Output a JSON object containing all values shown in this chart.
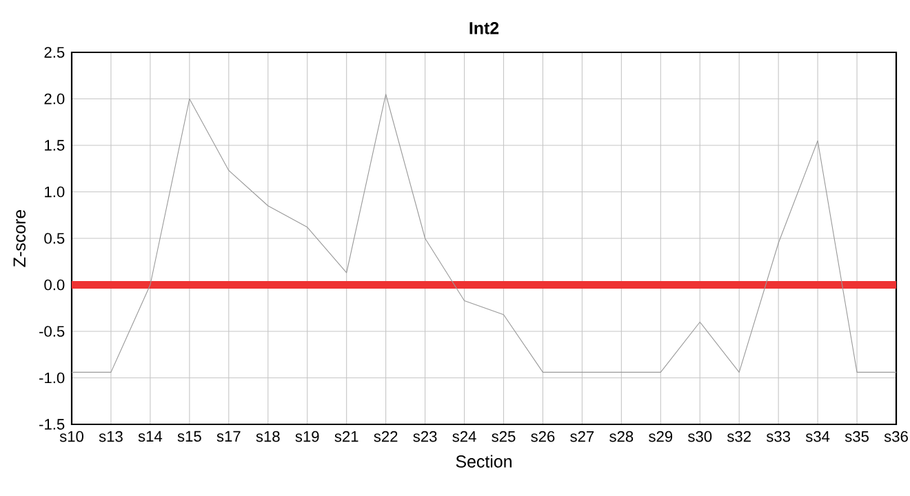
{
  "chart_data": {
    "type": "line",
    "title": "Int2",
    "xlabel": "Section",
    "ylabel": "Z-score",
    "categories": [
      "s10",
      "s13",
      "s14",
      "s15",
      "s17",
      "s18",
      "s19",
      "s21",
      "s22",
      "s23",
      "s24",
      "s25",
      "s26",
      "s27",
      "s28",
      "s29",
      "s30",
      "s32",
      "s33",
      "s34",
      "s35",
      "s36"
    ],
    "series": [
      {
        "color": "#999999",
        "values": [
          -0.94,
          -0.94,
          0,
          2.0,
          1.23,
          0.85,
          0.62,
          0.13,
          2.05,
          0.5,
          -0.17,
          -0.32,
          -0.94,
          -0.94,
          -0.94,
          -0.94,
          -0.4,
          -0.94,
          0.45,
          1.55,
          -0.94,
          -0.94
        ]
      }
    ],
    "ylim": [
      -1.5,
      2.5
    ],
    "yticks": [
      {
        "value": -1.5,
        "label": "-1.5"
      },
      {
        "value": -1.0,
        "label": "-1.0"
      },
      {
        "value": -0.5,
        "label": "-0.5"
      },
      {
        "value": 0,
        "label": "0.0"
      },
      {
        "value": 0.5,
        "label": "0.5"
      },
      {
        "value": 1.0,
        "label": "1.0"
      },
      {
        "value": 1.5,
        "label": "1.5"
      },
      {
        "value": 2.0,
        "label": "2.0"
      },
      {
        "value": 2.5,
        "label": "2.5"
      }
    ],
    "ref_lines": [
      {
        "axis": "y",
        "value": 0,
        "color": "#ee3333"
      }
    ],
    "grid": true,
    "marker": "none",
    "line_style": "solid"
  }
}
